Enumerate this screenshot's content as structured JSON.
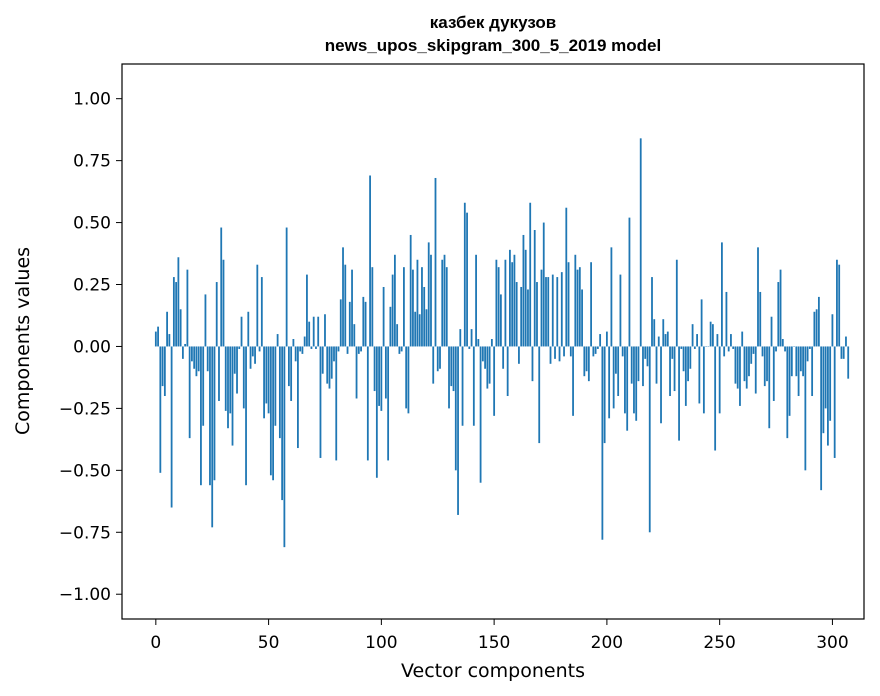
{
  "chart_data": {
    "type": "bar",
    "title": "казбек дукузов",
    "subtitle": "news_upos_skipgram_300_5_2019 model",
    "xlabel": "Vector components",
    "ylabel": "Components values",
    "xlim": [
      -15,
      314
    ],
    "ylim": [
      -1.1,
      1.14
    ],
    "xticks": [
      0,
      50,
      100,
      150,
      200,
      250,
      300
    ],
    "yticks": [
      -1.0,
      -0.75,
      -0.5,
      -0.25,
      0.0,
      0.25,
      0.5,
      0.75,
      1.0
    ],
    "xtick_labels": [
      "0",
      "50",
      "100",
      "150",
      "200",
      "250",
      "300"
    ],
    "ytick_labels": [
      "−1.00",
      "−0.75",
      "−0.50",
      "−0.25",
      "0.00",
      "0.25",
      "0.50",
      "0.75",
      "1.00"
    ],
    "bar_color": "#1f77b4",
    "grid": false,
    "legend": "none",
    "values": [
      0.06,
      0.08,
      -0.51,
      -0.16,
      -0.2,
      0.14,
      0.05,
      -0.65,
      0.28,
      0.26,
      0.36,
      0.15,
      -0.05,
      0.01,
      0.31,
      -0.37,
      -0.06,
      -0.09,
      -0.12,
      -0.1,
      -0.56,
      -0.32,
      0.21,
      -0.1,
      -0.56,
      -0.73,
      -0.54,
      0.26,
      -0.22,
      0.48,
      0.35,
      -0.26,
      -0.33,
      -0.27,
      -0.4,
      -0.11,
      -0.19,
      -0.01,
      0.12,
      -0.25,
      -0.56,
      0.14,
      -0.09,
      -0.04,
      -0.07,
      0.33,
      -0.02,
      0.28,
      -0.29,
      -0.23,
      -0.27,
      -0.52,
      -0.54,
      -0.32,
      0.05,
      -0.37,
      -0.62,
      -0.81,
      0.48,
      -0.16,
      -0.22,
      0.03,
      -0.06,
      -0.41,
      -0.02,
      -0.03,
      0.04,
      0.29,
      0.1,
      -0.01,
      0.12,
      -0.01,
      0.12,
      -0.45,
      -0.11,
      0.13,
      -0.15,
      -0.17,
      -0.13,
      -0.06,
      -0.46,
      -0.02,
      0.19,
      0.4,
      0.33,
      -0.03,
      0.18,
      0.31,
      0.09,
      -0.21,
      -0.03,
      -0.02,
      0.2,
      0.18,
      -0.46,
      0.69,
      0.32,
      -0.18,
      -0.53,
      -0.24,
      -0.26,
      0.24,
      -0.21,
      -0.46,
      0.16,
      0.29,
      0.37,
      0.09,
      -0.03,
      -0.02,
      0.32,
      -0.25,
      -0.27,
      0.45,
      0.31,
      0.14,
      0.35,
      0.13,
      0.32,
      0.24,
      0.15,
      0.42,
      0.37,
      -0.15,
      0.68,
      -0.1,
      -0.09,
      0.35,
      0.37,
      0.32,
      -0.25,
      -0.16,
      -0.18,
      -0.5,
      -0.68,
      0.07,
      -0.32,
      0.58,
      0.54,
      -0.01,
      0.07,
      -0.32,
      0.37,
      0.03,
      -0.55,
      -0.06,
      -0.09,
      -0.17,
      -0.15,
      0.03,
      -0.28,
      0.35,
      0.32,
      0.21,
      -0.09,
      0.35,
      -0.2,
      0.39,
      0.34,
      0.37,
      0.26,
      -0.07,
      0.24,
      0.45,
      0.39,
      0.23,
      0.58,
      -0.14,
      0.47,
      0.26,
      -0.39,
      0.31,
      0.5,
      0.28,
      0.28,
      -0.07,
      0.29,
      -0.05,
      0.28,
      -0.06,
      0.3,
      -0.04,
      0.56,
      0.34,
      -0.04,
      -0.28,
      0.37,
      0.31,
      0.32,
      0.23,
      -0.12,
      -0.1,
      -0.14,
      0.34,
      -0.04,
      -0.03,
      -0.01,
      0.05,
      -0.78,
      -0.39,
      0.06,
      -0.29,
      0.4,
      -0.25,
      -0.11,
      -0.2,
      0.29,
      -0.04,
      -0.27,
      -0.34,
      0.52,
      -0.15,
      -0.27,
      -0.3,
      -0.14,
      0.84,
      -0.16,
      -0.05,
      -0.08,
      -0.75,
      0.28,
      0.11,
      -0.15,
      0.04,
      -0.31,
      0.11,
      0.05,
      0.06,
      -0.2,
      -0.05,
      -0.18,
      0.35,
      -0.38,
      -0.01,
      -0.1,
      -0.24,
      -0.14,
      -0.09,
      0.09,
      -0.01,
      0.05,
      -0.23,
      0.19,
      -0.27,
      0.0,
      0.0,
      0.1,
      0.09,
      -0.42,
      0.05,
      -0.27,
      0.42,
      -0.04,
      0.22,
      -0.02,
      0.05,
      -0.01,
      -0.15,
      -0.17,
      -0.24,
      0.06,
      -0.14,
      -0.17,
      -0.12,
      -0.07,
      -0.03,
      -0.19,
      0.4,
      0.22,
      -0.04,
      -0.16,
      -0.14,
      -0.33,
      0.12,
      -0.22,
      -0.02,
      0.26,
      0.31,
      0.03,
      -0.02,
      -0.37,
      -0.28,
      -0.12,
      0.0,
      -0.12,
      -0.2,
      -0.1,
      -0.12,
      -0.5,
      -0.06,
      -0.01,
      -0.2,
      0.14,
      0.15,
      0.2,
      -0.58,
      -0.35,
      -0.25,
      -0.4,
      -0.3,
      0.13,
      -0.45,
      0.35,
      0.33,
      -0.05,
      -0.05,
      0.04,
      -0.13
    ]
  }
}
